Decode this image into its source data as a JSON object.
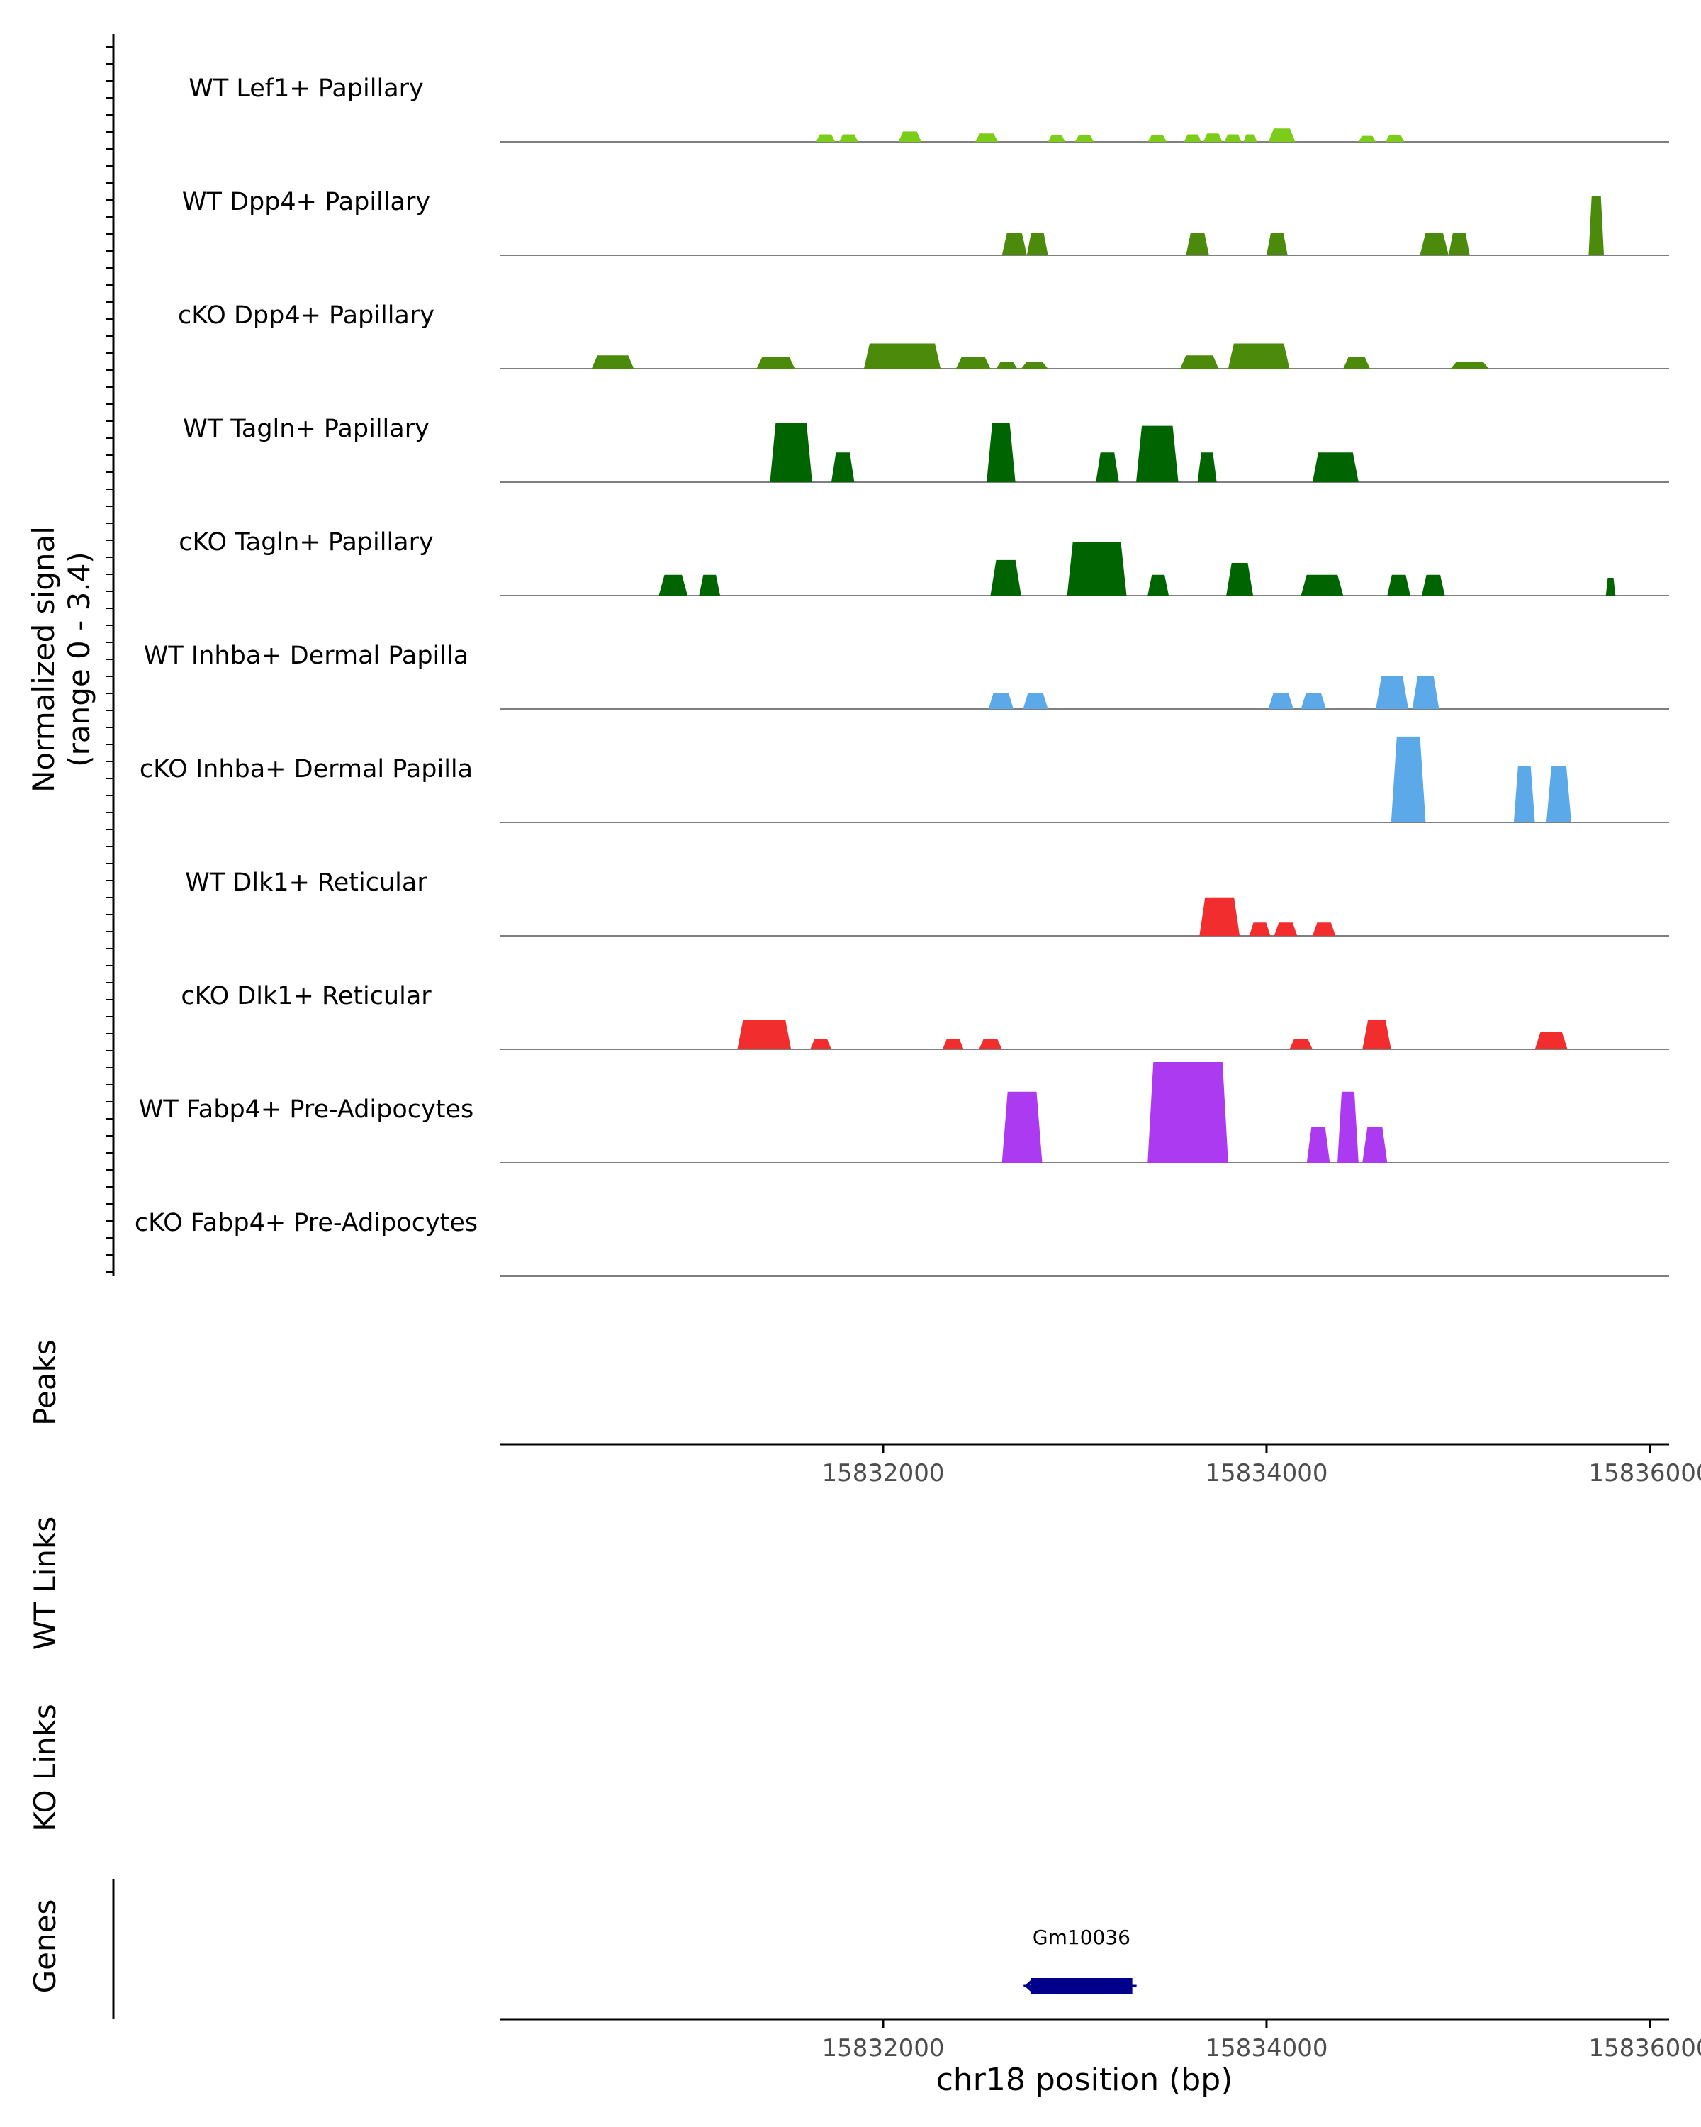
{
  "chart_data": {
    "type": "area",
    "signal_axis_label": "Normalized signal",
    "signal_range_label": "(range 0 - 3.4)",
    "signal_range": [
      0,
      3.4
    ],
    "region": {
      "chrom": "chr18",
      "start": 15830000,
      "end": 15836100
    },
    "xlabel": "chr18 position (bp)",
    "x_ticks": [
      15832000,
      15834000,
      15836000
    ],
    "x_tick_labels": [
      "15832000",
      "15834000",
      "15836000"
    ],
    "tracks": [
      {
        "name": "WT Lef1+ Papillary",
        "color": "#7ccd1a",
        "segments": [
          [
            15831650,
            15831750,
            0.25
          ],
          [
            15831770,
            15831870,
            0.25
          ],
          [
            15832080,
            15832200,
            0.35
          ],
          [
            15832480,
            15832600,
            0.28
          ],
          [
            15832860,
            15832950,
            0.22
          ],
          [
            15833000,
            15833100,
            0.22
          ],
          [
            15833380,
            15833480,
            0.22
          ],
          [
            15833570,
            15833660,
            0.25
          ],
          [
            15833670,
            15833770,
            0.28
          ],
          [
            15833780,
            15833870,
            0.25
          ],
          [
            15833880,
            15833950,
            0.25
          ],
          [
            15834010,
            15834150,
            0.45
          ],
          [
            15834480,
            15834570,
            0.2
          ],
          [
            15834620,
            15834720,
            0.22
          ]
        ]
      },
      {
        "name": "WT Dpp4+ Papillary",
        "color": "#4b8a0a",
        "segments": [
          [
            15832620,
            15832750,
            0.75
          ],
          [
            15832750,
            15832860,
            0.75
          ],
          [
            15833580,
            15833700,
            0.75
          ],
          [
            15834000,
            15834110,
            0.75
          ],
          [
            15834800,
            15834950,
            0.75
          ],
          [
            15834950,
            15835060,
            0.75
          ],
          [
            15835680,
            15835760,
            2.0
          ]
        ]
      },
      {
        "name": "cKO Dpp4+ Papillary",
        "color": "#4b8a0a",
        "segments": [
          [
            15830480,
            15830700,
            0.45
          ],
          [
            15831340,
            15831540,
            0.4
          ],
          [
            15831900,
            15832300,
            0.85
          ],
          [
            15832380,
            15832560,
            0.4
          ],
          [
            15832590,
            15832700,
            0.22
          ],
          [
            15832720,
            15832860,
            0.22
          ],
          [
            15833550,
            15833750,
            0.45
          ],
          [
            15833800,
            15834120,
            0.85
          ],
          [
            15834400,
            15834540,
            0.4
          ],
          [
            15834960,
            15835160,
            0.22
          ]
        ]
      },
      {
        "name": "WT Tagln+ Papillary",
        "color": "#006400",
        "segments": [
          [
            15831410,
            15831630,
            2.0
          ],
          [
            15831730,
            15831850,
            1.0
          ],
          [
            15832540,
            15832690,
            2.0
          ],
          [
            15833110,
            15833230,
            1.0
          ],
          [
            15833320,
            15833540,
            1.9
          ],
          [
            15833640,
            15833740,
            1.0
          ],
          [
            15834240,
            15834480,
            1.0
          ]
        ]
      },
      {
        "name": "cKO Tagln+ Papillary",
        "color": "#006400",
        "segments": [
          [
            15830830,
            15830980,
            0.7
          ],
          [
            15831040,
            15831150,
            0.7
          ],
          [
            15832560,
            15832720,
            1.2
          ],
          [
            15832960,
            15833270,
            1.8
          ],
          [
            15833380,
            15833490,
            0.7
          ],
          [
            15833790,
            15833930,
            1.1
          ],
          [
            15834180,
            15834400,
            0.7
          ],
          [
            15834630,
            15834750,
            0.7
          ],
          [
            15834810,
            15834930,
            0.7
          ],
          [
            15835770,
            15835820,
            0.6
          ]
        ]
      },
      {
        "name": "WT Inhba+ Dermal Papilla",
        "color": "#5ba9e8",
        "segments": [
          [
            15832550,
            15832680,
            0.55
          ],
          [
            15832730,
            15832860,
            0.55
          ],
          [
            15834010,
            15834140,
            0.55
          ],
          [
            15834180,
            15834310,
            0.55
          ],
          [
            15834570,
            15834740,
            1.1
          ],
          [
            15834760,
            15834900,
            1.1
          ]
        ]
      },
      {
        "name": "cKO Inhba+ Dermal Papilla",
        "color": "#5ba9e8",
        "segments": [
          [
            15834650,
            15834830,
            2.9
          ],
          [
            15835290,
            15835400,
            1.9
          ],
          [
            15835460,
            15835590,
            1.9
          ]
        ]
      },
      {
        "name": "WT Dlk1+ Reticular",
        "color": "#f22d2d",
        "segments": [
          [
            15833650,
            15833860,
            1.3
          ],
          [
            15833910,
            15834020,
            0.45
          ],
          [
            15834040,
            15834160,
            0.45
          ],
          [
            15834240,
            15834360,
            0.45
          ]
        ]
      },
      {
        "name": "cKO Dlk1+ Reticular",
        "color": "#f22d2d",
        "segments": [
          [
            15831240,
            15831520,
            1.0
          ],
          [
            15831620,
            15831730,
            0.35
          ],
          [
            15832310,
            15832420,
            0.35
          ],
          [
            15832500,
            15832620,
            0.35
          ],
          [
            15834120,
            15834240,
            0.35
          ],
          [
            15834500,
            15834650,
            1.0
          ],
          [
            15835400,
            15835570,
            0.6
          ]
        ]
      },
      {
        "name": "WT Fabp4+ Pre-Adipocytes",
        "color": "#ab3af0",
        "segments": [
          [
            15832620,
            15832830,
            2.4
          ],
          [
            15833380,
            15833800,
            3.4
          ],
          [
            15834210,
            15834330,
            1.2
          ],
          [
            15834370,
            15834480,
            2.4
          ],
          [
            15834500,
            15834630,
            1.2
          ]
        ]
      },
      {
        "name": "cKO Fabp4+ Pre-Adipocytes",
        "color": "#ab3af0",
        "segments": []
      }
    ],
    "lower_tracks": [
      "Peaks",
      "WT Links",
      "KO Links",
      "Genes"
    ],
    "genes": [
      {
        "name": "Gm10036",
        "start": 15832770,
        "end": 15833300,
        "strand": "-",
        "color": "#00008b"
      }
    ]
  }
}
